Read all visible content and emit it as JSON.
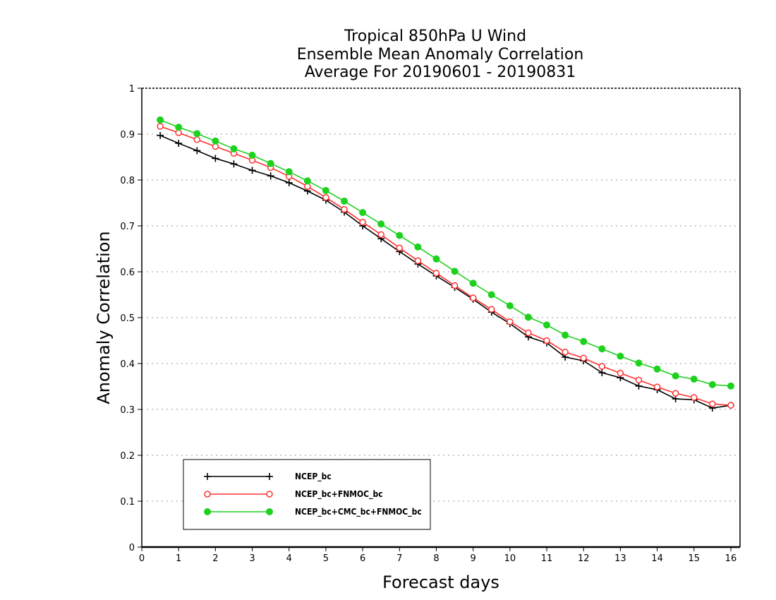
{
  "chart_data": {
    "type": "line",
    "title": [
      "Tropical 850hPa U Wind",
      "Ensemble Mean Anomaly Correlation",
      "Average For 20190601 - 20190831"
    ],
    "xlabel": "Forecast days",
    "ylabel": "Anomaly Correlation",
    "xlim": [
      0,
      16.25
    ],
    "ylim": [
      0,
      1
    ],
    "xticks": [
      0,
      1,
      2,
      3,
      4,
      5,
      6,
      7,
      8,
      9,
      10,
      11,
      12,
      13,
      14,
      15,
      16
    ],
    "yticks": [
      0,
      0.1,
      0.2,
      0.3,
      0.4,
      0.5,
      0.6,
      0.7,
      0.8,
      0.9,
      1
    ],
    "grid": "dotted horizontal",
    "legend_position": "bottom-left",
    "x": [
      0.5,
      1,
      1.5,
      2,
      2.5,
      3,
      3.5,
      4,
      4.5,
      5,
      5.5,
      6,
      6.5,
      7,
      7.5,
      8,
      8.5,
      9,
      9.5,
      10,
      10.5,
      11,
      11.5,
      12,
      12.5,
      13,
      13.5,
      14,
      14.5,
      15,
      15.5,
      16
    ],
    "series": [
      {
        "name": "NCEP_bc",
        "color": "#000000",
        "marker": "plus",
        "values": [
          0.897,
          0.88,
          0.864,
          0.847,
          0.835,
          0.821,
          0.809,
          0.794,
          0.776,
          0.756,
          0.73,
          0.7,
          0.672,
          0.644,
          0.617,
          0.591,
          0.566,
          0.54,
          0.512,
          0.487,
          0.458,
          0.445,
          0.414,
          0.406,
          0.38,
          0.369,
          0.351,
          0.343,
          0.323,
          0.321,
          0.303,
          0.309
        ]
      },
      {
        "name": "NCEP_bc+FNMOC_bc",
        "color": "#ff3030",
        "marker": "open-circle",
        "values": [
          0.917,
          0.903,
          0.888,
          0.873,
          0.858,
          0.843,
          0.827,
          0.808,
          0.786,
          0.762,
          0.736,
          0.708,
          0.681,
          0.652,
          0.624,
          0.597,
          0.57,
          0.543,
          0.518,
          0.491,
          0.467,
          0.45,
          0.425,
          0.412,
          0.394,
          0.379,
          0.364,
          0.349,
          0.335,
          0.326,
          0.312,
          0.309
        ]
      },
      {
        "name": "NCEP_bc+CMC_bc+FNMOC_bc",
        "color": "#1ed11e",
        "marker": "filled-circle",
        "values": [
          0.931,
          0.915,
          0.901,
          0.885,
          0.868,
          0.854,
          0.836,
          0.818,
          0.798,
          0.777,
          0.754,
          0.729,
          0.704,
          0.679,
          0.654,
          0.628,
          0.601,
          0.575,
          0.55,
          0.526,
          0.501,
          0.484,
          0.462,
          0.448,
          0.432,
          0.416,
          0.401,
          0.388,
          0.373,
          0.366,
          0.354,
          0.351
        ]
      }
    ]
  }
}
